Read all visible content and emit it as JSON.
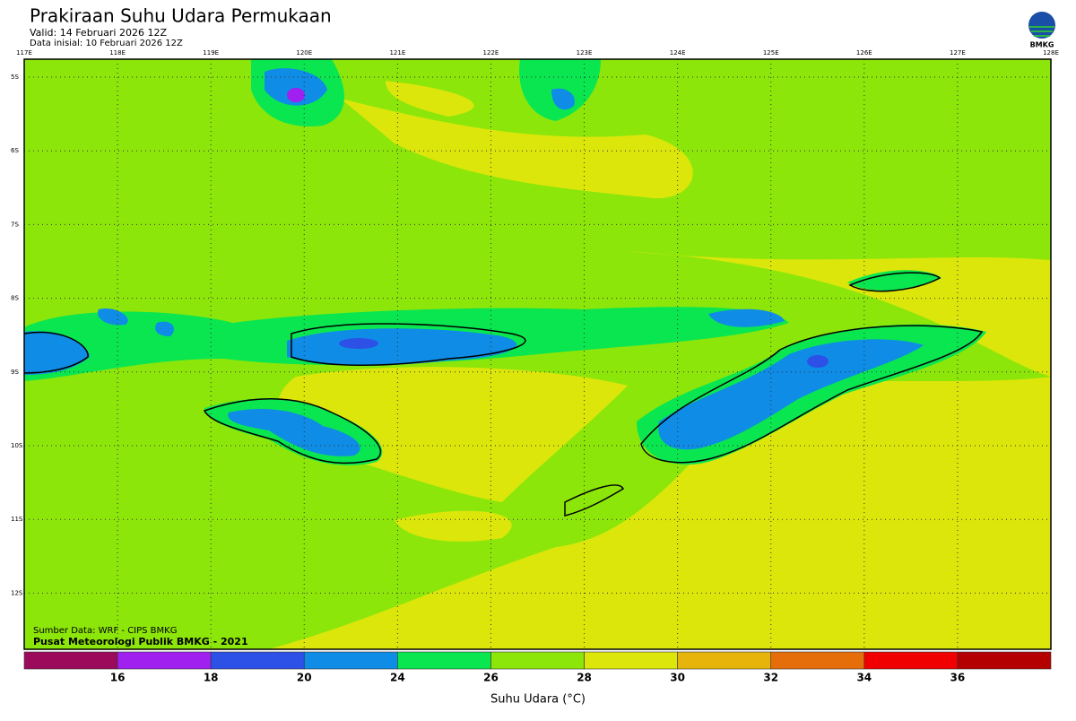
{
  "header": {
    "title": "Prakiraan Suhu Udara Permukaan",
    "valid": "Valid: 14 Februari 2026 12Z",
    "init": "Data inisial: 10 Februari 2026 12Z",
    "logo": "BMKG"
  },
  "map": {
    "lon_labels": [
      "117E",
      "118E",
      "119E",
      "120E",
      "121E",
      "122E",
      "123E",
      "124E",
      "125E",
      "126E",
      "127E",
      "128E"
    ],
    "lat_labels": [
      "5S",
      "6S",
      "7S",
      "8S",
      "9S",
      "10S",
      "11S",
      "12S"
    ],
    "source": "Sumber Data: WRF - CIPS BMKG",
    "credit": "Pusat Meteorologi Publik BMKG - 2021"
  },
  "colorbar": {
    "ticks": [
      16,
      18,
      20,
      24,
      26,
      28,
      30,
      32,
      34,
      36
    ],
    "colors": [
      "#9c0a5c",
      "#a020f0",
      "#2d50e6",
      "#0f8ce6",
      "#0ae650",
      "#8ce60a",
      "#dce60a",
      "#e6b40a",
      "#e66e0a",
      "#f00000",
      "#b40000"
    ],
    "label": "Suhu Udara (°C)"
  }
}
